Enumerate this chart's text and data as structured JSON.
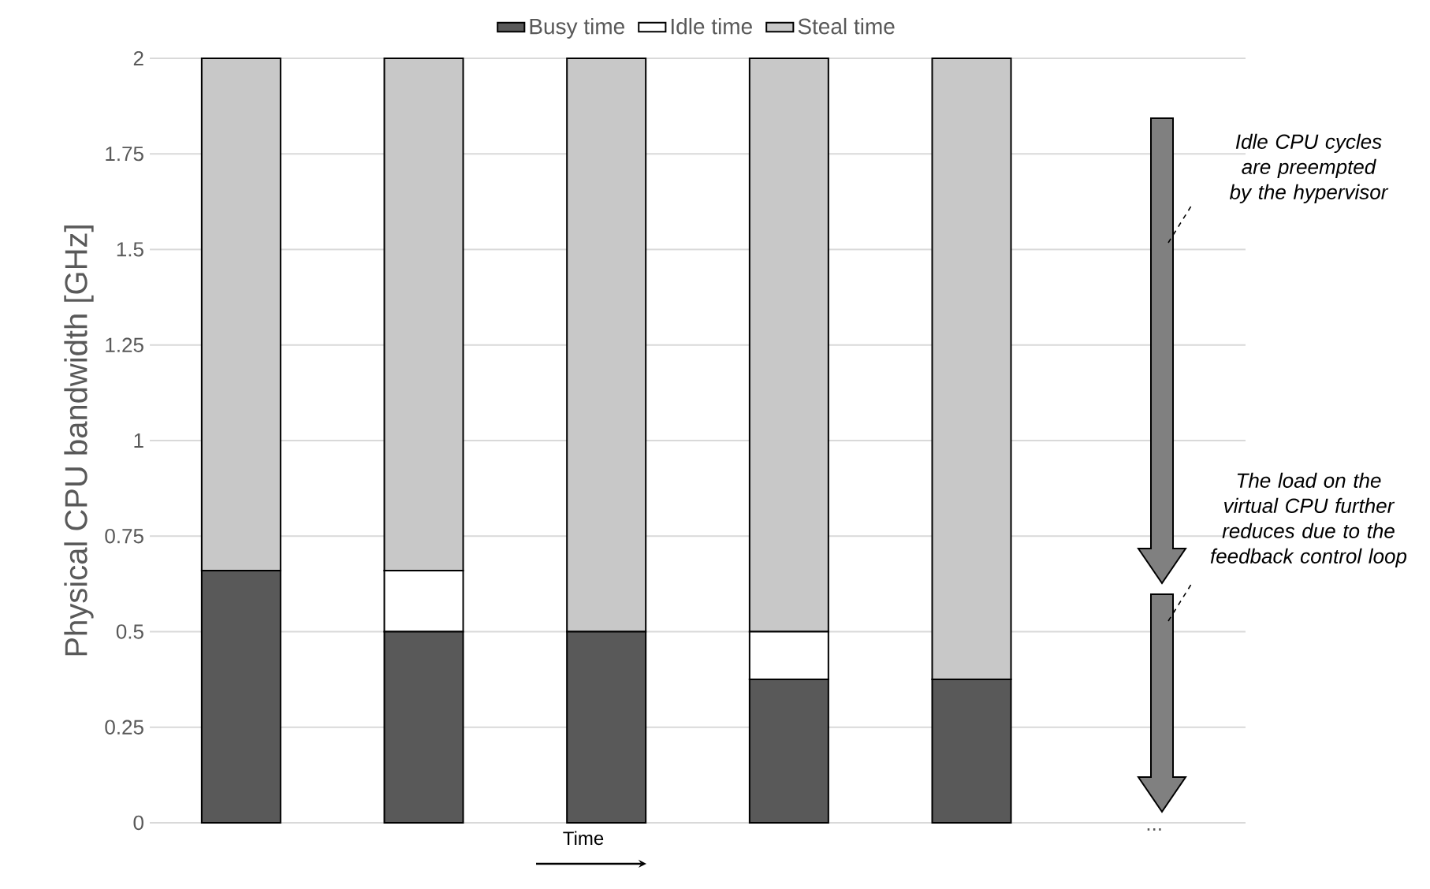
{
  "chart_data": {
    "type": "bar",
    "stacked": true,
    "ylabel": "Physical CPU bandwidth [GHz]",
    "xlabel": "Time",
    "categories": [
      null,
      null,
      null,
      null,
      null,
      "..."
    ],
    "series": [
      {
        "name": "Busy time",
        "color": "#595959",
        "values": [
          0.66,
          0.5,
          0.5,
          0.375,
          0.375,
          null
        ]
      },
      {
        "name": "Idle time",
        "color": "#ffffff",
        "values": [
          0,
          0.16,
          0,
          0.125,
          0,
          null
        ]
      },
      {
        "name": "Steal time",
        "color": "#c8c8c8",
        "values": [
          1.34,
          1.34,
          1.5,
          1.5,
          1.625,
          null
        ]
      }
    ],
    "ylim": [
      0,
      2
    ],
    "yticks": [
      0,
      0.25,
      0.5,
      0.75,
      1,
      1.25,
      1.5,
      1.75,
      2
    ],
    "grid": "y",
    "legend": "top",
    "annotations": [
      "Idle CPU cycles are preempted by the hypervisor",
      "The load on the virtual CPU further reduces due to the feedback control loop"
    ]
  }
}
